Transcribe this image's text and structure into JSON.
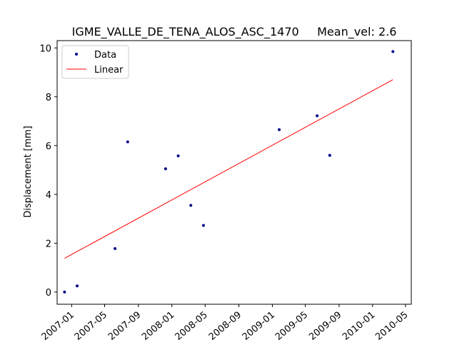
{
  "chart_data": {
    "type": "scatter",
    "title": "IGME_VALLE_DE_TENA_ALOS_ASC_1470     Mean_vel: 2.6",
    "xlabel": "",
    "ylabel": "Displacement [mm]",
    "ylim": [
      -0.5,
      10.3
    ],
    "xlim": [
      "2006-11-09",
      "2010-05-22"
    ],
    "yticks": [
      0,
      2,
      4,
      6,
      8,
      10
    ],
    "xticks": [
      "2007-01",
      "2007-05",
      "2007-09",
      "2008-01",
      "2008-05",
      "2008-09",
      "2009-01",
      "2009-05",
      "2009-09",
      "2010-01",
      "2010-05"
    ],
    "grid": false,
    "legend_position": "top-left",
    "series": [
      {
        "name": "Data",
        "kind": "scatter",
        "color": "#00008b",
        "points": [
          {
            "x": "2006-12-06",
            "y": 0.0
          },
          {
            "x": "2007-01-21",
            "y": 0.25
          },
          {
            "x": "2007-06-08",
            "y": 1.78
          },
          {
            "x": "2007-07-24",
            "y": 6.15
          },
          {
            "x": "2007-12-09",
            "y": 5.05
          },
          {
            "x": "2008-01-24",
            "y": 5.58
          },
          {
            "x": "2008-03-10",
            "y": 3.55
          },
          {
            "x": "2008-04-25",
            "y": 2.73
          },
          {
            "x": "2009-01-26",
            "y": 6.65
          },
          {
            "x": "2009-06-13",
            "y": 7.22
          },
          {
            "x": "2009-07-29",
            "y": 5.6
          },
          {
            "x": "2010-03-16",
            "y": 9.85
          }
        ]
      },
      {
        "name": "Linear",
        "kind": "line",
        "color": "#ff0000",
        "points": [
          {
            "x": "2006-12-06",
            "y": 1.38
          },
          {
            "x": "2010-03-16",
            "y": 8.7
          }
        ]
      }
    ]
  }
}
